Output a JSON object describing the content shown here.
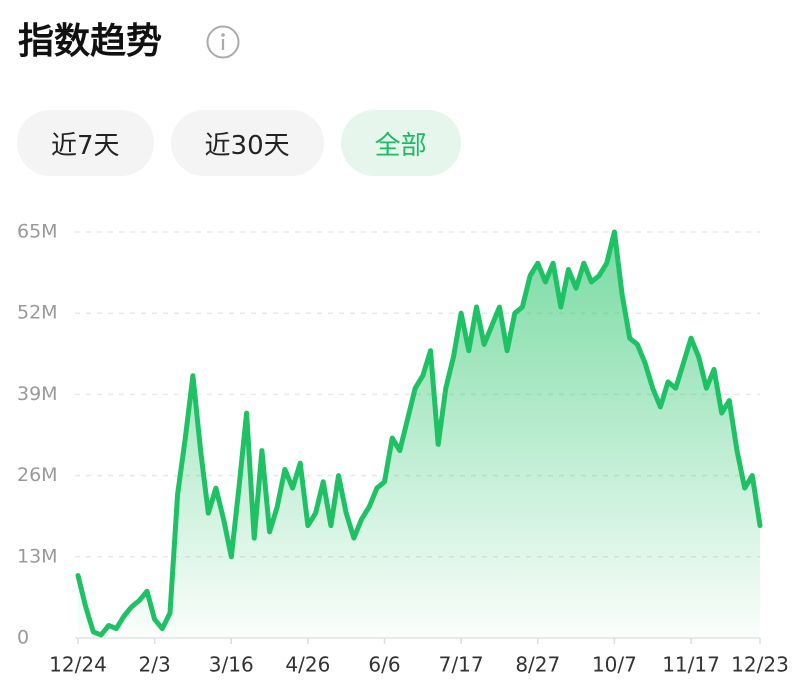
{
  "title": "指数趋势",
  "tabs": [
    "近7天",
    "近30天",
    "全部"
  ],
  "active_tab": 2,
  "chart_data": {
    "type": "area",
    "categories": [
      "12/24",
      null,
      null,
      null,
      null,
      null,
      null,
      null,
      null,
      null,
      "2/3",
      null,
      null,
      null,
      null,
      null,
      null,
      null,
      null,
      null,
      "3/16",
      null,
      null,
      null,
      null,
      null,
      null,
      null,
      null,
      null,
      "4/26",
      null,
      null,
      null,
      null,
      null,
      null,
      null,
      null,
      null,
      "6/6",
      null,
      null,
      null,
      null,
      null,
      null,
      null,
      null,
      null,
      "7/17",
      null,
      null,
      null,
      null,
      null,
      null,
      null,
      null,
      null,
      "8/27",
      null,
      null,
      null,
      null,
      null,
      null,
      null,
      null,
      null,
      "10/7",
      null,
      null,
      null,
      null,
      null,
      null,
      null,
      null,
      null,
      "11/17",
      null,
      null,
      null,
      null,
      null,
      null,
      null,
      null,
      "12/23"
    ],
    "values": [
      10,
      5,
      1,
      0.5,
      2,
      1.5,
      3.5,
      5,
      6,
      7.5,
      3,
      1.5,
      4,
      23,
      32,
      42,
      30,
      20,
      24,
      19,
      13,
      24,
      36,
      16,
      30,
      17,
      21,
      27,
      24,
      28,
      18,
      20,
      25,
      18,
      26,
      20,
      16,
      19,
      21,
      24,
      25,
      32,
      30,
      35,
      40,
      42,
      46,
      31,
      40,
      45,
      52,
      46,
      53,
      47,
      50,
      53,
      46,
      52,
      53,
      58,
      60,
      57,
      60,
      53,
      59,
      56,
      60,
      57,
      58,
      60,
      65,
      55,
      48,
      47,
      44,
      40,
      37,
      41,
      40,
      44,
      48,
      45,
      40,
      43,
      36,
      38,
      30,
      24,
      26,
      18
    ],
    "color": "#1ec264",
    "ylim": [
      0,
      65
    ],
    "yticks": [
      0,
      {
        "value": 13,
        "label": "13M"
      },
      {
        "value": 26,
        "label": "26M"
      },
      {
        "value": 39,
        "label": "39M"
      },
      {
        "value": 52,
        "label": "52M"
      },
      {
        "value": 65,
        "label": "65M"
      }
    ],
    "grid": true
  }
}
